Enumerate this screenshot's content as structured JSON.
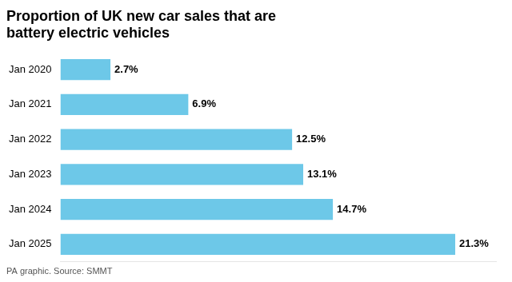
{
  "chart_data": {
    "type": "bar",
    "orientation": "horizontal",
    "title": "Proportion of UK new car sales that are\nbattery electric vehicles",
    "annotations": [
      "PA graphic. Source: SMMT"
    ],
    "categories": [
      "Jan 2020",
      "Jan 2021",
      "Jan 2022",
      "Jan 2023",
      "Jan 2024",
      "Jan 2025"
    ],
    "values": [
      2.7,
      6.9,
      12.5,
      13.1,
      14.7,
      21.3
    ],
    "value_labels": [
      "2.7%",
      "6.9%",
      "12.5%",
      "13.1%",
      "14.7%",
      "21.3%"
    ],
    "data_labels": true,
    "color": "#6dc8e8",
    "xlim": [
      0,
      23.5
    ],
    "grid": false,
    "tick_labels": "y"
  }
}
